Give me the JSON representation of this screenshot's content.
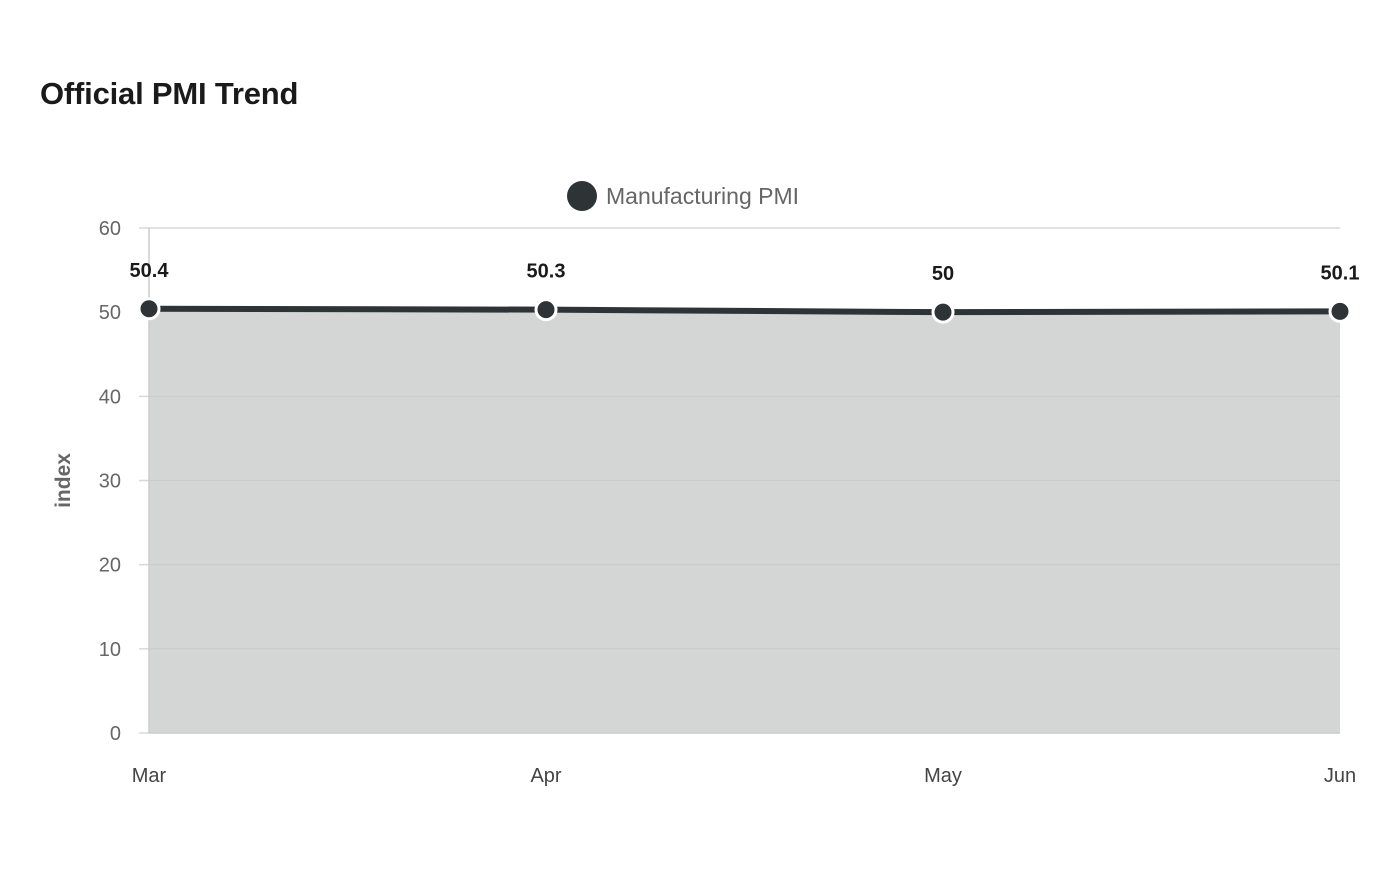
{
  "chart_data": {
    "type": "area",
    "title": "Official PMI Trend",
    "categories": [
      "Mar",
      "Apr",
      "May",
      "Jun"
    ],
    "series": [
      {
        "name": "Manufacturing PMI",
        "values": [
          50.4,
          50.3,
          50,
          50.1
        ],
        "labels": [
          "50.4",
          "50.3",
          "50",
          "50.1"
        ]
      }
    ],
    "ylabel": "index",
    "xlabel": "",
    "ylim": [
      0,
      60
    ],
    "yticks": [
      "0",
      "10",
      "20",
      "30",
      "40",
      "50",
      "60"
    ],
    "grid": true,
    "legend_position": "top-center",
    "colors": {
      "line": "#2e3436",
      "area": "#d4d6d6",
      "grid": "#d9d9d9"
    }
  }
}
